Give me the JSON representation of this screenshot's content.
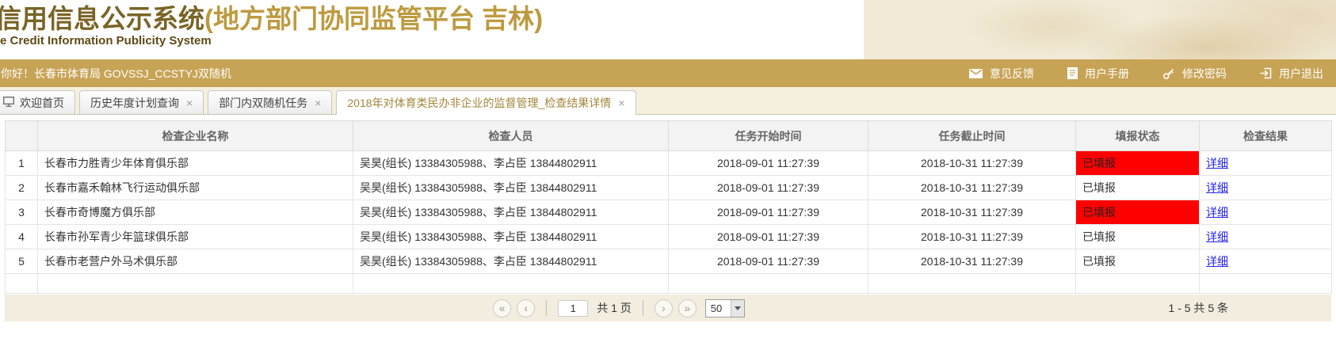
{
  "header": {
    "title_cn": "信用信息公示系统",
    "title_paren": "(地方部门协同监管平台 吉林)",
    "subtitle_en": "e Credit Information Publicity System"
  },
  "userbar": {
    "greeting": "你好！长春市体育局 GOVSSJ_CCSTYJ双随机",
    "links": [
      {
        "icon": "mail-icon",
        "label": "意见反馈"
      },
      {
        "icon": "document-icon",
        "label": "用户手册"
      },
      {
        "icon": "key-icon",
        "label": "修改密码"
      },
      {
        "icon": "logout-icon",
        "label": "用户退出"
      }
    ]
  },
  "tabs": [
    {
      "icon": "monitor-icon",
      "label": "欢迎首页",
      "closable": false,
      "active": false
    },
    {
      "label": "历史年度计划查询",
      "closable": true,
      "active": false
    },
    {
      "label": "部门内双随机任务",
      "closable": true,
      "active": false
    },
    {
      "label": "2018年对体育类民办非企业的监督管理_检查结果详情",
      "closable": true,
      "active": true
    }
  ],
  "table": {
    "columns": [
      "",
      "检查企业名称",
      "检查人员",
      "任务开始时间",
      "任务截止时间",
      "填报状态",
      "检查结果"
    ],
    "rows": [
      {
        "no": "1",
        "company": "长春市力胜青少年体育俱乐部",
        "inspectors": "吴昊(组长) 13384305988、李占臣 13844802911",
        "start_time": "2018-09-01 11:27:39",
        "end_time": "2018-10-31 11:27:39",
        "status": "已填报",
        "status_highlight": true,
        "result_link": "详细"
      },
      {
        "no": "2",
        "company": "长春市嘉禾翰林飞行运动俱乐部",
        "inspectors": "吴昊(组长) 13384305988、李占臣 13844802911",
        "start_time": "2018-09-01 11:27:39",
        "end_time": "2018-10-31 11:27:39",
        "status": "已填报",
        "status_highlight": false,
        "result_link": "详细"
      },
      {
        "no": "3",
        "company": "长春市奇博魔方俱乐部",
        "inspectors": "吴昊(组长) 13384305988、李占臣 13844802911",
        "start_time": "2018-09-01 11:27:39",
        "end_time": "2018-10-31 11:27:39",
        "status": "已填报",
        "status_highlight": true,
        "result_link": "详细"
      },
      {
        "no": "4",
        "company": "长春市孙军青少年篮球俱乐部",
        "inspectors": "吴昊(组长) 13384305988、李占臣 13844802911",
        "start_time": "2018-09-01 11:27:39",
        "end_time": "2018-10-31 11:27:39",
        "status": "已填报",
        "status_highlight": false,
        "result_link": "详细"
      },
      {
        "no": "5",
        "company": "长春市老营户外马术俱乐部",
        "inspectors": "吴昊(组长) 13384305988、李占臣 13844802911",
        "start_time": "2018-09-01 11:27:39",
        "end_time": "2018-10-31 11:27:39",
        "status": "已填报",
        "status_highlight": false,
        "result_link": "详细"
      }
    ]
  },
  "pagination": {
    "first_label": "«",
    "prev_label": "‹",
    "page_value": "1",
    "total_pages_label": "共 1 页",
    "next_label": "›",
    "last_label": "»",
    "page_size": "50",
    "record_info": "1 - 5  共 5 条"
  },
  "colors": {
    "topbar_gold": "#c7a355",
    "tabbar_cream": "#f5f0dd",
    "status_red": "#ff0000",
    "link_blue": "#2525e6",
    "title_dark_gold": "#7a6426",
    "title_light_gold": "#bd9a3e"
  }
}
